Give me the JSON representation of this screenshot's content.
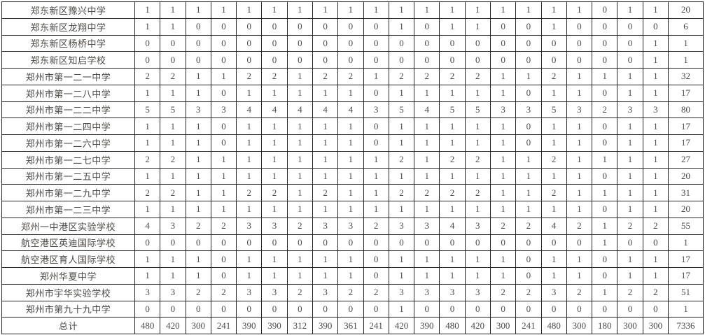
{
  "colors": {
    "background": "#ffffff",
    "border": "#262626",
    "text": "#4d4a47"
  },
  "table": {
    "value_columns_count": 21,
    "rows": [
      {
        "name": "郑东新区豫兴中学",
        "values": [
          1,
          1,
          1,
          1,
          1,
          1,
          1,
          1,
          1,
          1,
          1,
          1,
          1,
          1,
          1,
          1,
          1,
          1,
          0,
          1,
          1
        ],
        "total": 20
      },
      {
        "name": "郑东新区龙翔中学",
        "values": [
          1,
          1,
          0,
          0,
          0,
          0,
          0,
          0,
          0,
          0,
          1,
          0,
          1,
          1,
          0,
          0,
          1,
          0,
          0,
          0,
          0
        ],
        "total": 6
      },
      {
        "name": "郑东新区杨桥中学",
        "values": [
          0,
          0,
          0,
          0,
          0,
          0,
          0,
          0,
          0,
          0,
          0,
          0,
          0,
          0,
          0,
          0,
          0,
          0,
          0,
          0,
          1
        ],
        "total": 1
      },
      {
        "name": "郑东新区知启学校",
        "values": [
          0,
          0,
          0,
          0,
          0,
          0,
          0,
          0,
          0,
          0,
          0,
          0,
          0,
          0,
          0,
          0,
          0,
          0,
          0,
          0,
          1
        ],
        "total": 1
      },
      {
        "name": "郑州市第一二一中学",
        "values": [
          2,
          2,
          1,
          1,
          2,
          2,
          1,
          2,
          2,
          1,
          2,
          2,
          2,
          2,
          1,
          1,
          2,
          1,
          1,
          1,
          1
        ],
        "total": 32
      },
      {
        "name": "郑州市第一二八中学",
        "values": [
          1,
          1,
          1,
          0,
          1,
          1,
          1,
          1,
          1,
          0,
          1,
          1,
          1,
          1,
          1,
          0,
          1,
          1,
          0,
          1,
          1
        ],
        "total": 17
      },
      {
        "name": "郑州市第一二二中学",
        "values": [
          5,
          5,
          3,
          3,
          4,
          4,
          4,
          4,
          4,
          3,
          5,
          4,
          5,
          5,
          3,
          3,
          5,
          3,
          2,
          3,
          3
        ],
        "total": 80
      },
      {
        "name": "郑州市第一二四中学",
        "values": [
          1,
          1,
          1,
          0,
          1,
          1,
          1,
          1,
          1,
          0,
          1,
          1,
          1,
          1,
          1,
          0,
          1,
          1,
          0,
          1,
          1
        ],
        "total": 17
      },
      {
        "name": "郑州市第一二六中学",
        "values": [
          1,
          1,
          1,
          0,
          1,
          1,
          1,
          1,
          1,
          0,
          1,
          1,
          1,
          1,
          1,
          0,
          1,
          1,
          0,
          1,
          1
        ],
        "total": 17
      },
      {
        "name": "郑州市第一二七中学",
        "values": [
          2,
          2,
          1,
          1,
          1,
          1,
          1,
          1,
          1,
          1,
          2,
          1,
          2,
          2,
          1,
          1,
          2,
          1,
          1,
          1,
          1
        ],
        "total": 27
      },
      {
        "name": "郑州市第一二五中学",
        "values": [
          1,
          1,
          1,
          1,
          1,
          1,
          1,
          1,
          1,
          1,
          1,
          1,
          1,
          1,
          1,
          1,
          1,
          1,
          0,
          1,
          1
        ],
        "total": 20
      },
      {
        "name": "郑州市第一二九中学",
        "values": [
          2,
          2,
          1,
          1,
          2,
          2,
          1,
          2,
          1,
          1,
          2,
          2,
          2,
          2,
          1,
          1,
          2,
          1,
          1,
          1,
          1
        ],
        "total": 31
      },
      {
        "name": "郑州市第一二三中学",
        "values": [
          1,
          1,
          1,
          1,
          1,
          1,
          1,
          1,
          1,
          1,
          1,
          1,
          1,
          1,
          1,
          1,
          1,
          1,
          0,
          1,
          1
        ],
        "total": 20
      },
      {
        "name": "郑州一中港区实验学校",
        "values": [
          4,
          3,
          2,
          2,
          3,
          3,
          2,
          3,
          3,
          2,
          3,
          3,
          4,
          3,
          2,
          2,
          4,
          2,
          1,
          2,
          2
        ],
        "total": 55
      },
      {
        "name": "航空港区英迪国际学校",
        "values": [
          0,
          0,
          0,
          0,
          0,
          0,
          0,
          0,
          0,
          0,
          0,
          0,
          0,
          0,
          0,
          0,
          0,
          0,
          1,
          0,
          0
        ],
        "total": 1
      },
      {
        "name": "航空港区育人国际学校",
        "values": [
          1,
          1,
          1,
          0,
          1,
          1,
          1,
          1,
          1,
          0,
          1,
          1,
          1,
          1,
          1,
          0,
          1,
          1,
          0,
          1,
          1
        ],
        "total": 17
      },
      {
        "name": "郑州华夏中学",
        "values": [
          1,
          1,
          1,
          0,
          1,
          1,
          1,
          1,
          1,
          0,
          1,
          1,
          1,
          1,
          1,
          0,
          1,
          1,
          0,
          1,
          1
        ],
        "total": 17
      },
      {
        "name": "郑州市宇华实验学校",
        "values": [
          3,
          3,
          2,
          2,
          3,
          3,
          2,
          3,
          2,
          2,
          3,
          3,
          3,
          3,
          2,
          2,
          3,
          2,
          1,
          2,
          2
        ],
        "total": 51
      },
      {
        "name": "郑州市第九十九中学",
        "values": [
          0,
          0,
          0,
          0,
          0,
          0,
          0,
          0,
          0,
          0,
          1,
          0,
          0,
          0,
          0,
          0,
          0,
          0,
          0,
          0,
          0
        ],
        "total": 1
      }
    ],
    "totals_row": {
      "label": "总计",
      "values": [
        480,
        420,
        300,
        241,
        390,
        390,
        312,
        390,
        361,
        241,
        420,
        390,
        480,
        420,
        300,
        241,
        480,
        300,
        180,
        300,
        300
      ],
      "total": 7336
    }
  }
}
